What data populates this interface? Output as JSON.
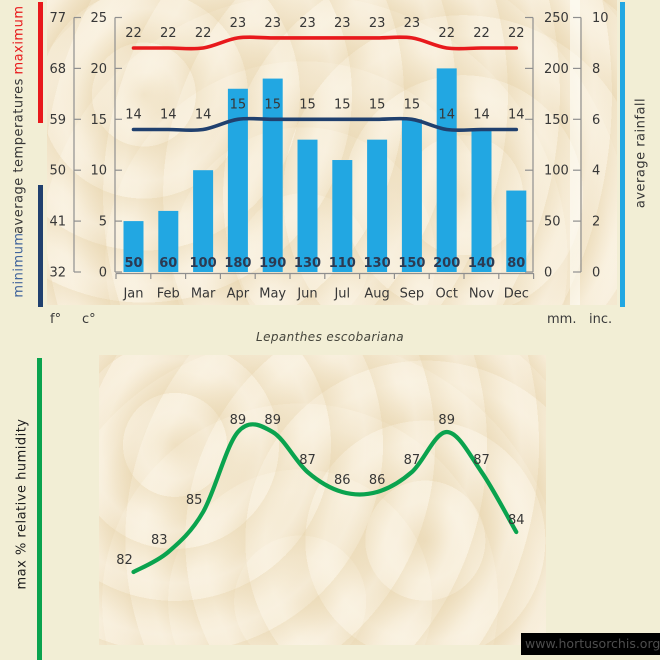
{
  "title": "Lepanthes escobariana",
  "watermark": "www.hortusorchis.org",
  "axis_titles": {
    "maximum": "maximum",
    "average_temperatures": "average temperatures",
    "minimum": "minimum",
    "average_rainfall": "average rainfall",
    "humidity": "max % relative humidity"
  },
  "unit_labels": {
    "fahrenheit": "f°",
    "celsius": "c°",
    "millimeters": "mm.",
    "inches": "inc."
  },
  "colors": {
    "max_temp_line": "#e8191c",
    "min_temp_line": "#20406e",
    "rain_bar": "#22a7e2",
    "humidity_line": "#0aa34e",
    "minimum_label": "#41659c",
    "maximum_label": "#e8191c",
    "axis_line": "#8f8f8f",
    "text": "#373737",
    "bar_value_text": "#2c3a52",
    "background": "#f2eed5",
    "parchment": "#f7edd8",
    "watermark_bg": "#000000",
    "watermark_text": "#4d4d4d"
  },
  "chart_data": [
    {
      "type": "bar",
      "categories": [
        "Jan",
        "Feb",
        "Mar",
        "Apr",
        "May",
        "Jun",
        "Jul",
        "Aug",
        "Sep",
        "Oct",
        "Nov",
        "Dec"
      ],
      "series": [
        {
          "name": "maximum temperature",
          "type": "line",
          "unit": "°C",
          "values": [
            22,
            22,
            22,
            23,
            23,
            23,
            23,
            23,
            23,
            22,
            22,
            22
          ]
        },
        {
          "name": "minimum temperature",
          "type": "line",
          "unit": "°C",
          "values": [
            14,
            14,
            14,
            15,
            15,
            15,
            15,
            15,
            15,
            14,
            14,
            14
          ]
        },
        {
          "name": "average rainfall",
          "type": "bar",
          "unit": "mm",
          "values": [
            50,
            60,
            100,
            180,
            190,
            130,
            110,
            130,
            150,
            200,
            140,
            80
          ]
        }
      ],
      "axes": {
        "left_fahrenheit": {
          "unit": "f°",
          "ticks": [
            77,
            68,
            59,
            50,
            41,
            32
          ]
        },
        "left_celsius": {
          "unit": "c°",
          "ticks": [
            25,
            20,
            15,
            10,
            5,
            0
          ],
          "range": [
            0,
            25
          ]
        },
        "right_millimeters": {
          "unit": "mm.",
          "ticks": [
            250,
            200,
            150,
            100,
            50,
            0
          ],
          "range": [
            0,
            250
          ]
        },
        "right_inches": {
          "unit": "inc.",
          "ticks": [
            10,
            8,
            6,
            4,
            2,
            0
          ],
          "range": [
            0,
            10
          ]
        }
      },
      "legend": "none",
      "grid": false
    },
    {
      "type": "line",
      "title": "Lepanthes escobariana",
      "categories": [
        "Jan",
        "Feb",
        "Mar",
        "Apr",
        "May",
        "Jun",
        "Jul",
        "Aug",
        "Sep",
        "Oct",
        "Nov",
        "Dec"
      ],
      "values": [
        82,
        83,
        85,
        89,
        89,
        87,
        86,
        86,
        87,
        89,
        87,
        84
      ],
      "ylabel": "max % relative humidity",
      "legend": "none",
      "grid": false
    }
  ]
}
